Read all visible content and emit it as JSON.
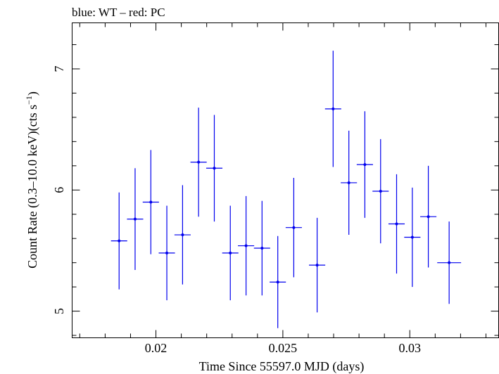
{
  "chart_data": {
    "type": "scatter",
    "title": "blue: WT – red: PC",
    "xlabel": "Time Since 55597.0 MJD (days)",
    "ylabel_main": "Count Rate (0.3–10.0 keV)(cts s",
    "ylabel_sup": "−1",
    "ylabel_end": ")",
    "xlim": [
      0.0167,
      0.0335
    ],
    "ylim": [
      4.78,
      7.38
    ],
    "xticks_major": [
      0.02,
      0.025,
      0.03
    ],
    "xtick_labels": [
      "0.02",
      "0.025",
      "0.03"
    ],
    "yticks_major": [
      5,
      6,
      7
    ],
    "ytick_labels": [
      "5",
      "6",
      "7"
    ],
    "grid": false,
    "series": [
      {
        "color": "#0000ee",
        "points": [
          {
            "x": 0.01855,
            "xerr": 0.00032,
            "y": 5.58,
            "yerr": 0.4
          },
          {
            "x": 0.01918,
            "xerr": 0.00032,
            "y": 5.76,
            "yerr": 0.42
          },
          {
            "x": 0.0198,
            "xerr": 0.00032,
            "y": 5.9,
            "yerr": 0.43
          },
          {
            "x": 0.02043,
            "xerr": 0.00032,
            "y": 5.48,
            "yerr": 0.39
          },
          {
            "x": 0.02105,
            "xerr": 0.00032,
            "y": 5.63,
            "yerr": 0.41
          },
          {
            "x": 0.02168,
            "xerr": 0.00032,
            "y": 6.23,
            "yerr": 0.45
          },
          {
            "x": 0.0223,
            "xerr": 0.00032,
            "y": 6.18,
            "yerr": 0.44
          },
          {
            "x": 0.02293,
            "xerr": 0.00032,
            "y": 5.48,
            "yerr": 0.39
          },
          {
            "x": 0.02355,
            "xerr": 0.00032,
            "y": 5.54,
            "yerr": 0.41
          },
          {
            "x": 0.02418,
            "xerr": 0.00032,
            "y": 5.52,
            "yerr": 0.39
          },
          {
            "x": 0.0248,
            "xerr": 0.00032,
            "y": 5.24,
            "yerr": 0.38
          },
          {
            "x": 0.02543,
            "xerr": 0.00032,
            "y": 5.69,
            "yerr": 0.41
          },
          {
            "x": 0.02635,
            "xerr": 0.00032,
            "y": 5.38,
            "yerr": 0.39
          },
          {
            "x": 0.02698,
            "xerr": 0.00032,
            "y": 6.67,
            "yerr": 0.48
          },
          {
            "x": 0.0276,
            "xerr": 0.00032,
            "y": 6.06,
            "yerr": 0.43
          },
          {
            "x": 0.02823,
            "xerr": 0.00032,
            "y": 6.21,
            "yerr": 0.44
          },
          {
            "x": 0.02885,
            "xerr": 0.00032,
            "y": 5.99,
            "yerr": 0.43
          },
          {
            "x": 0.02948,
            "xerr": 0.00032,
            "y": 5.72,
            "yerr": 0.41
          },
          {
            "x": 0.0301,
            "xerr": 0.00032,
            "y": 5.61,
            "yerr": 0.41
          },
          {
            "x": 0.03073,
            "xerr": 0.00032,
            "y": 5.78,
            "yerr": 0.42
          },
          {
            "x": 0.03155,
            "xerr": 0.00047,
            "y": 5.4,
            "yerr": 0.34
          }
        ]
      }
    ]
  }
}
